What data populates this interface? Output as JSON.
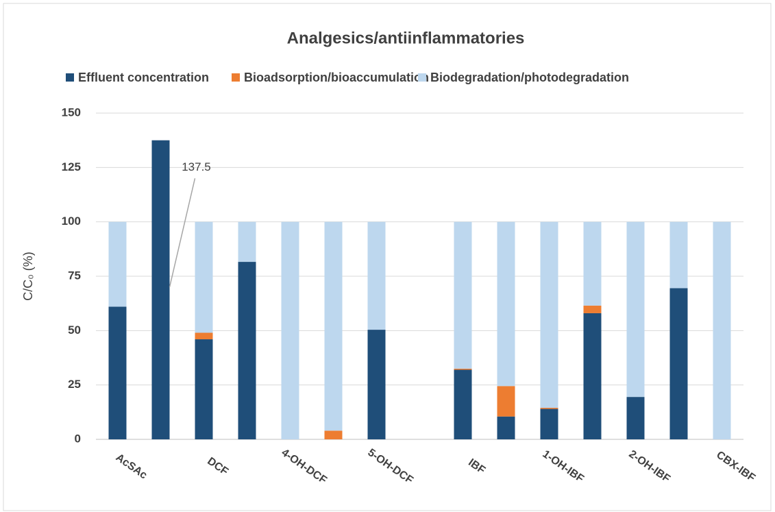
{
  "chart_data": {
    "type": "stacked-bar",
    "title": "Analgesics/antiinflammatories",
    "ylabel": "C/C₀ (%)",
    "categories": [
      "AcSAc",
      null,
      "DCF",
      null,
      "4-OH-DCF",
      null,
      "5-OH-DCF",
      null,
      "IBF",
      null,
      "1-OH-IBF",
      null,
      "2-OH-IBF",
      null,
      "CBX-IBF"
    ],
    "series": [
      {
        "name": "Effluent concentration",
        "color": "#1f4e79",
        "values": [
          61,
          137.5,
          46,
          81.6,
          0,
          0,
          50.4,
          0,
          32,
          10.5,
          14,
          58,
          19.5,
          69.5,
          0
        ]
      },
      {
        "name": "Bioadsorption/bioaccumulation",
        "color": "#ed7d31",
        "values": [
          0,
          0,
          3,
          0,
          0,
          4,
          0,
          0,
          0.5,
          14,
          0.5,
          3.5,
          0,
          0,
          0
        ]
      },
      {
        "name": "Biodegradation/photodegradation",
        "color": "#bdd7ee",
        "values": [
          39,
          0,
          51,
          18.4,
          100,
          96,
          49.6,
          0,
          67.5,
          75.5,
          85.5,
          38.5,
          80.5,
          30.5,
          100
        ]
      }
    ],
    "ylim": [
      0,
      150
    ],
    "yticks": [
      0,
      25,
      50,
      75,
      100,
      125,
      150
    ],
    "grid": true,
    "legend": "top"
  }
}
